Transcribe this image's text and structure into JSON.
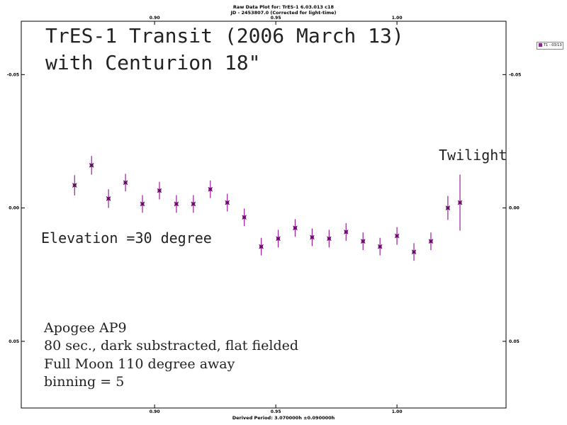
{
  "header": {
    "line1": "Raw Data Plot for: TrES-1  6.03.013 c18",
    "line2": "JD - 2453807.0   (Corrected for light-time)"
  },
  "footer": {
    "text": "Derived Period: 3.070000h   ±0.090000h"
  },
  "annotations": {
    "title_line1": "TrES-1 Transit  (2006 March 13)",
    "title_line2": "with Centurion 18\"",
    "twilight": "Twilight",
    "elevation": "Elevation =30 degree",
    "notes": [
      "Apogee AP9",
      "80 sec., dark substracted, flat fielded",
      "Full Moon 110 degree away",
      "binning = 5"
    ]
  },
  "legend": {
    "label": "T1 - 03/13"
  },
  "colors": {
    "marker": "#9c1c9c",
    "error_bar": "#9c1c9c",
    "axis": "#000000"
  },
  "chart_data": {
    "type": "scatter",
    "xlim": [
      0.845,
      1.045
    ],
    "ylim": [
      -0.07,
      0.075
    ],
    "y_inverted": true,
    "grid": false,
    "legend_position": "right",
    "x_ticks": [
      0.9,
      0.95,
      1.0
    ],
    "x_tick_labels": [
      "0.90",
      "0.95",
      "1.00"
    ],
    "y_ticks": [
      -0.05,
      0.0,
      0.05
    ],
    "y_tick_labels": [
      "-0.05",
      "0.00",
      "0.05"
    ],
    "series": [
      {
        "name": "T1 - 03/13",
        "x": [
          0.867,
          0.874,
          0.881,
          0.888,
          0.895,
          0.902,
          0.909,
          0.916,
          0.923,
          0.93,
          0.937,
          0.944,
          0.951,
          0.958,
          0.965,
          0.972,
          0.979,
          0.986,
          0.993,
          1.0,
          1.007,
          1.014,
          1.021,
          1.026
        ],
        "y": [
          -0.0085,
          -0.016,
          -0.0035,
          -0.0095,
          -0.0015,
          -0.0065,
          -0.0015,
          -0.0015,
          -0.007,
          -0.002,
          0.0035,
          0.0145,
          0.0115,
          0.0075,
          0.011,
          0.0115,
          0.009,
          0.0125,
          0.0145,
          0.0105,
          0.0165,
          0.0125,
          0.0,
          -0.002
        ],
        "err": [
          0.0038,
          0.0035,
          0.0035,
          0.0033,
          0.0033,
          0.0033,
          0.0033,
          0.0033,
          0.0033,
          0.0033,
          0.0033,
          0.0033,
          0.0033,
          0.0033,
          0.0033,
          0.0033,
          0.0033,
          0.0033,
          0.0033,
          0.0033,
          0.0033,
          0.0033,
          0.0045,
          0.0105
        ]
      }
    ]
  }
}
